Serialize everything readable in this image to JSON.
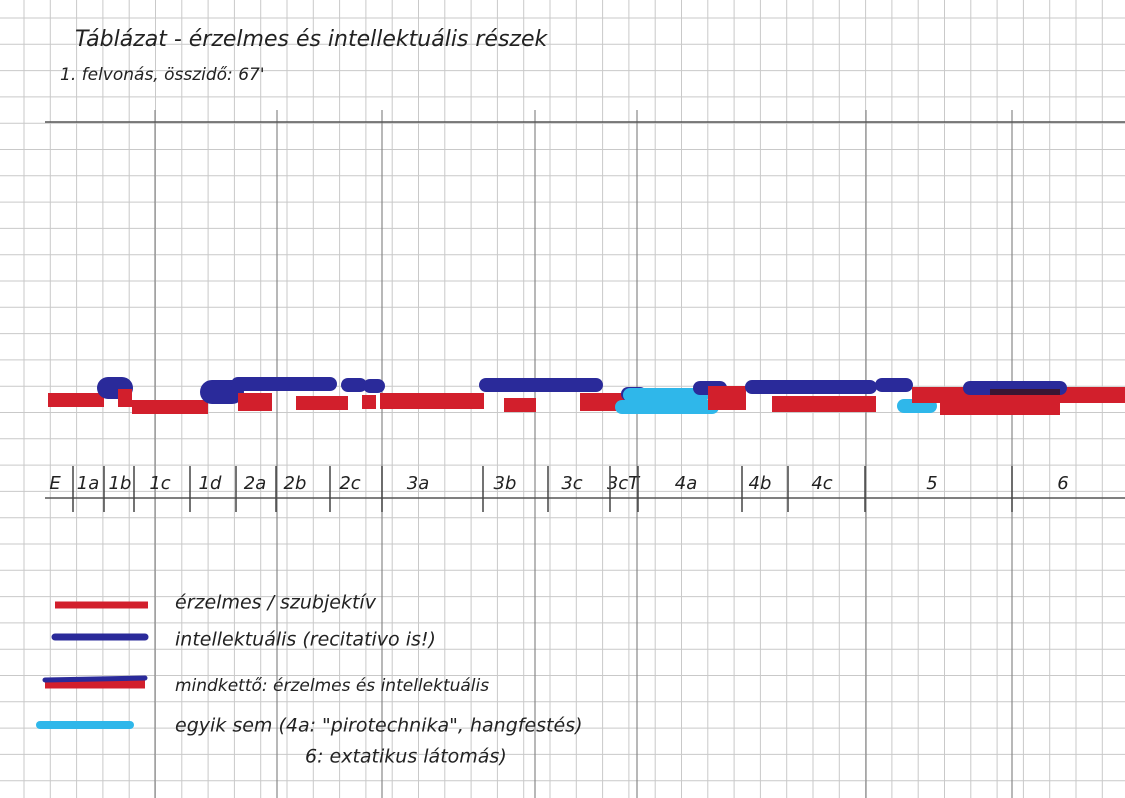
{
  "header": {
    "title": "Táblázat - érzelmes és intellektuális részek",
    "subtitle": "1. felvonás, összidő: 67'"
  },
  "sections": [
    "E",
    "1a",
    "1b",
    "1c",
    "1d",
    "2a",
    "2b",
    "2c",
    "3a",
    "3b",
    "3c",
    "3cT",
    "4a",
    "4b",
    "4c",
    "5",
    "6"
  ],
  "legend": [
    "érzelmes / szubjektív",
    "intellektuális (recitativo is!)",
    "mindkettő: érzelmes és intellektuális",
    "egyik sem (4a: \"pirotechnika\", hangfestés)",
    "6: extatikus látomás)"
  ]
}
